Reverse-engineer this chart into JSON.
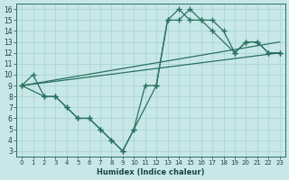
{
  "xlabel": "Humidex (Indice chaleur)",
  "background_color": "#c8e8e8",
  "grid_color": "#b0d8d8",
  "line_color": "#2a7060",
  "xlim": [
    -0.5,
    23.5
  ],
  "ylim": [
    2.5,
    16.5
  ],
  "xticks": [
    0,
    1,
    2,
    3,
    4,
    5,
    6,
    7,
    8,
    9,
    10,
    11,
    12,
    13,
    14,
    15,
    16,
    17,
    18,
    19,
    20,
    21,
    22,
    23
  ],
  "yticks": [
    3,
    4,
    5,
    6,
    7,
    8,
    9,
    10,
    11,
    12,
    13,
    14,
    15,
    16
  ],
  "curve1_x": [
    0,
    1,
    2,
    3,
    4,
    5,
    6,
    7,
    8,
    9,
    10,
    11,
    12,
    13,
    14,
    15,
    16,
    17,
    18,
    19,
    20,
    21,
    22,
    23
  ],
  "curve1_y": [
    9,
    10,
    8,
    8,
    7,
    6,
    6,
    5,
    4,
    3,
    5,
    9,
    9,
    15,
    16,
    15,
    15,
    15,
    14,
    12,
    13,
    13,
    12,
    12
  ],
  "curve2_x": [
    0,
    2,
    3,
    4,
    5,
    6,
    7,
    8,
    9,
    10,
    12,
    13,
    14,
    15,
    16,
    17,
    19,
    20,
    21,
    22,
    23
  ],
  "curve2_y": [
    9,
    8,
    8,
    7,
    6,
    6,
    5,
    4,
    3,
    5,
    9,
    15,
    15,
    16,
    15,
    14,
    12,
    13,
    13,
    12,
    12
  ],
  "line1_x": [
    0,
    23
  ],
  "line1_y": [
    9,
    13
  ],
  "line2_x": [
    0,
    23
  ],
  "line2_y": [
    9,
    12
  ]
}
